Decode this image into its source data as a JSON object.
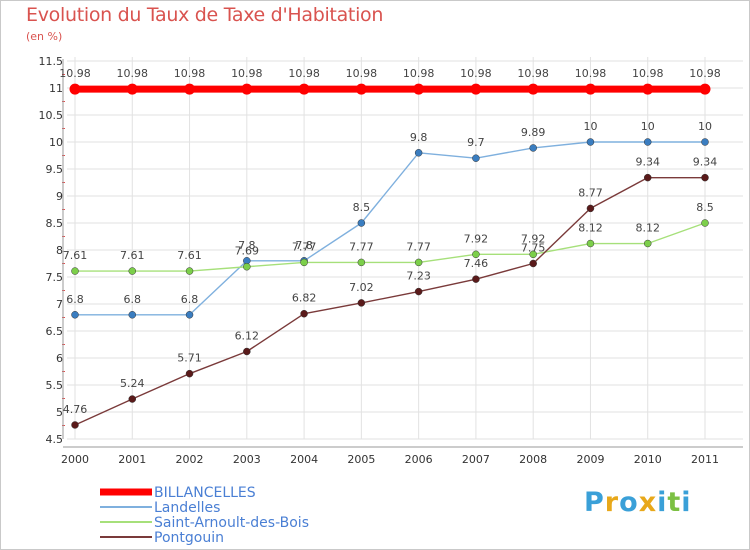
{
  "chart_data": {
    "type": "line",
    "title": "Evolution du Taux de Taxe d'Habitation",
    "subtitle": "(en %)",
    "x": [
      "2000",
      "2001",
      "2002",
      "2003",
      "2004",
      "2005",
      "2006",
      "2007",
      "2008",
      "2009",
      "2010",
      "2011"
    ],
    "y_ticks": [
      "4.5",
      "5",
      "5.5",
      "6",
      "6.5",
      "7",
      "7.5",
      "8",
      "8.5",
      "9",
      "9.5",
      "10",
      "10.5",
      "11",
      "11.5"
    ],
    "ylim": [
      4.5,
      11.5
    ],
    "grid": true,
    "legend_position": "bottom-left",
    "series": [
      {
        "name": "BILLANCELLES",
        "color": "#ff0000",
        "marker": "#ff0000",
        "width": 7,
        "values": [
          10.98,
          10.98,
          10.98,
          10.98,
          10.98,
          10.98,
          10.98,
          10.98,
          10.98,
          10.98,
          10.98,
          10.98
        ],
        "labels": [
          "10.98",
          "10.98",
          "10.98",
          "10.98",
          "10.98",
          "10.98",
          "10.98",
          "10.98",
          "10.98",
          "10.98",
          "10.98",
          "10.98"
        ]
      },
      {
        "name": "Landelles",
        "color": "#7fb0de",
        "marker": "#3a7dc0",
        "width": 1.4,
        "values": [
          6.8,
          6.8,
          6.8,
          7.8,
          7.8,
          8.5,
          9.8,
          9.7,
          9.89,
          10,
          10,
          10
        ],
        "labels": [
          "6.8",
          "6.8",
          "6.8",
          "7.8",
          "7.8",
          "8.5",
          "9.8",
          "9.7",
          "9.89",
          "10",
          "10",
          "10"
        ]
      },
      {
        "name": "Saint-Arnoult-des-Bois",
        "color": "#a6e07a",
        "marker": "#7ccf4a",
        "width": 1.4,
        "values": [
          7.61,
          7.61,
          7.61,
          7.69,
          7.77,
          7.77,
          7.77,
          7.92,
          7.92,
          8.12,
          8.12,
          8.5
        ],
        "labels": [
          "7.61",
          "7.61",
          "7.61",
          "7.69",
          "7.77",
          "7.77",
          "7.77",
          "7.92",
          "7.92",
          "8.12",
          "8.12",
          "8.5"
        ]
      },
      {
        "name": "Pontgouin",
        "color": "#7a3a3a",
        "marker": "#5a1a1a",
        "width": 1.4,
        "values": [
          4.76,
          5.24,
          5.71,
          6.12,
          6.82,
          7.02,
          7.23,
          7.46,
          7.75,
          8.77,
          9.34,
          9.34
        ],
        "labels": [
          "4.76",
          "5.24",
          "5.71",
          "6.12",
          "6.82",
          "7.02",
          "7.23",
          "7.46",
          "7.75",
          "8.77",
          "9.34",
          "9.34"
        ]
      }
    ]
  },
  "logo": {
    "letters": [
      "P",
      "r",
      "o",
      "x",
      "i",
      "t",
      "i"
    ],
    "colors": [
      "#3aa0d8",
      "#e8a81a",
      "#3aa0d8",
      "#e8a81a",
      "#3aa0d8",
      "#7cc043",
      "#3aa0d8"
    ]
  }
}
